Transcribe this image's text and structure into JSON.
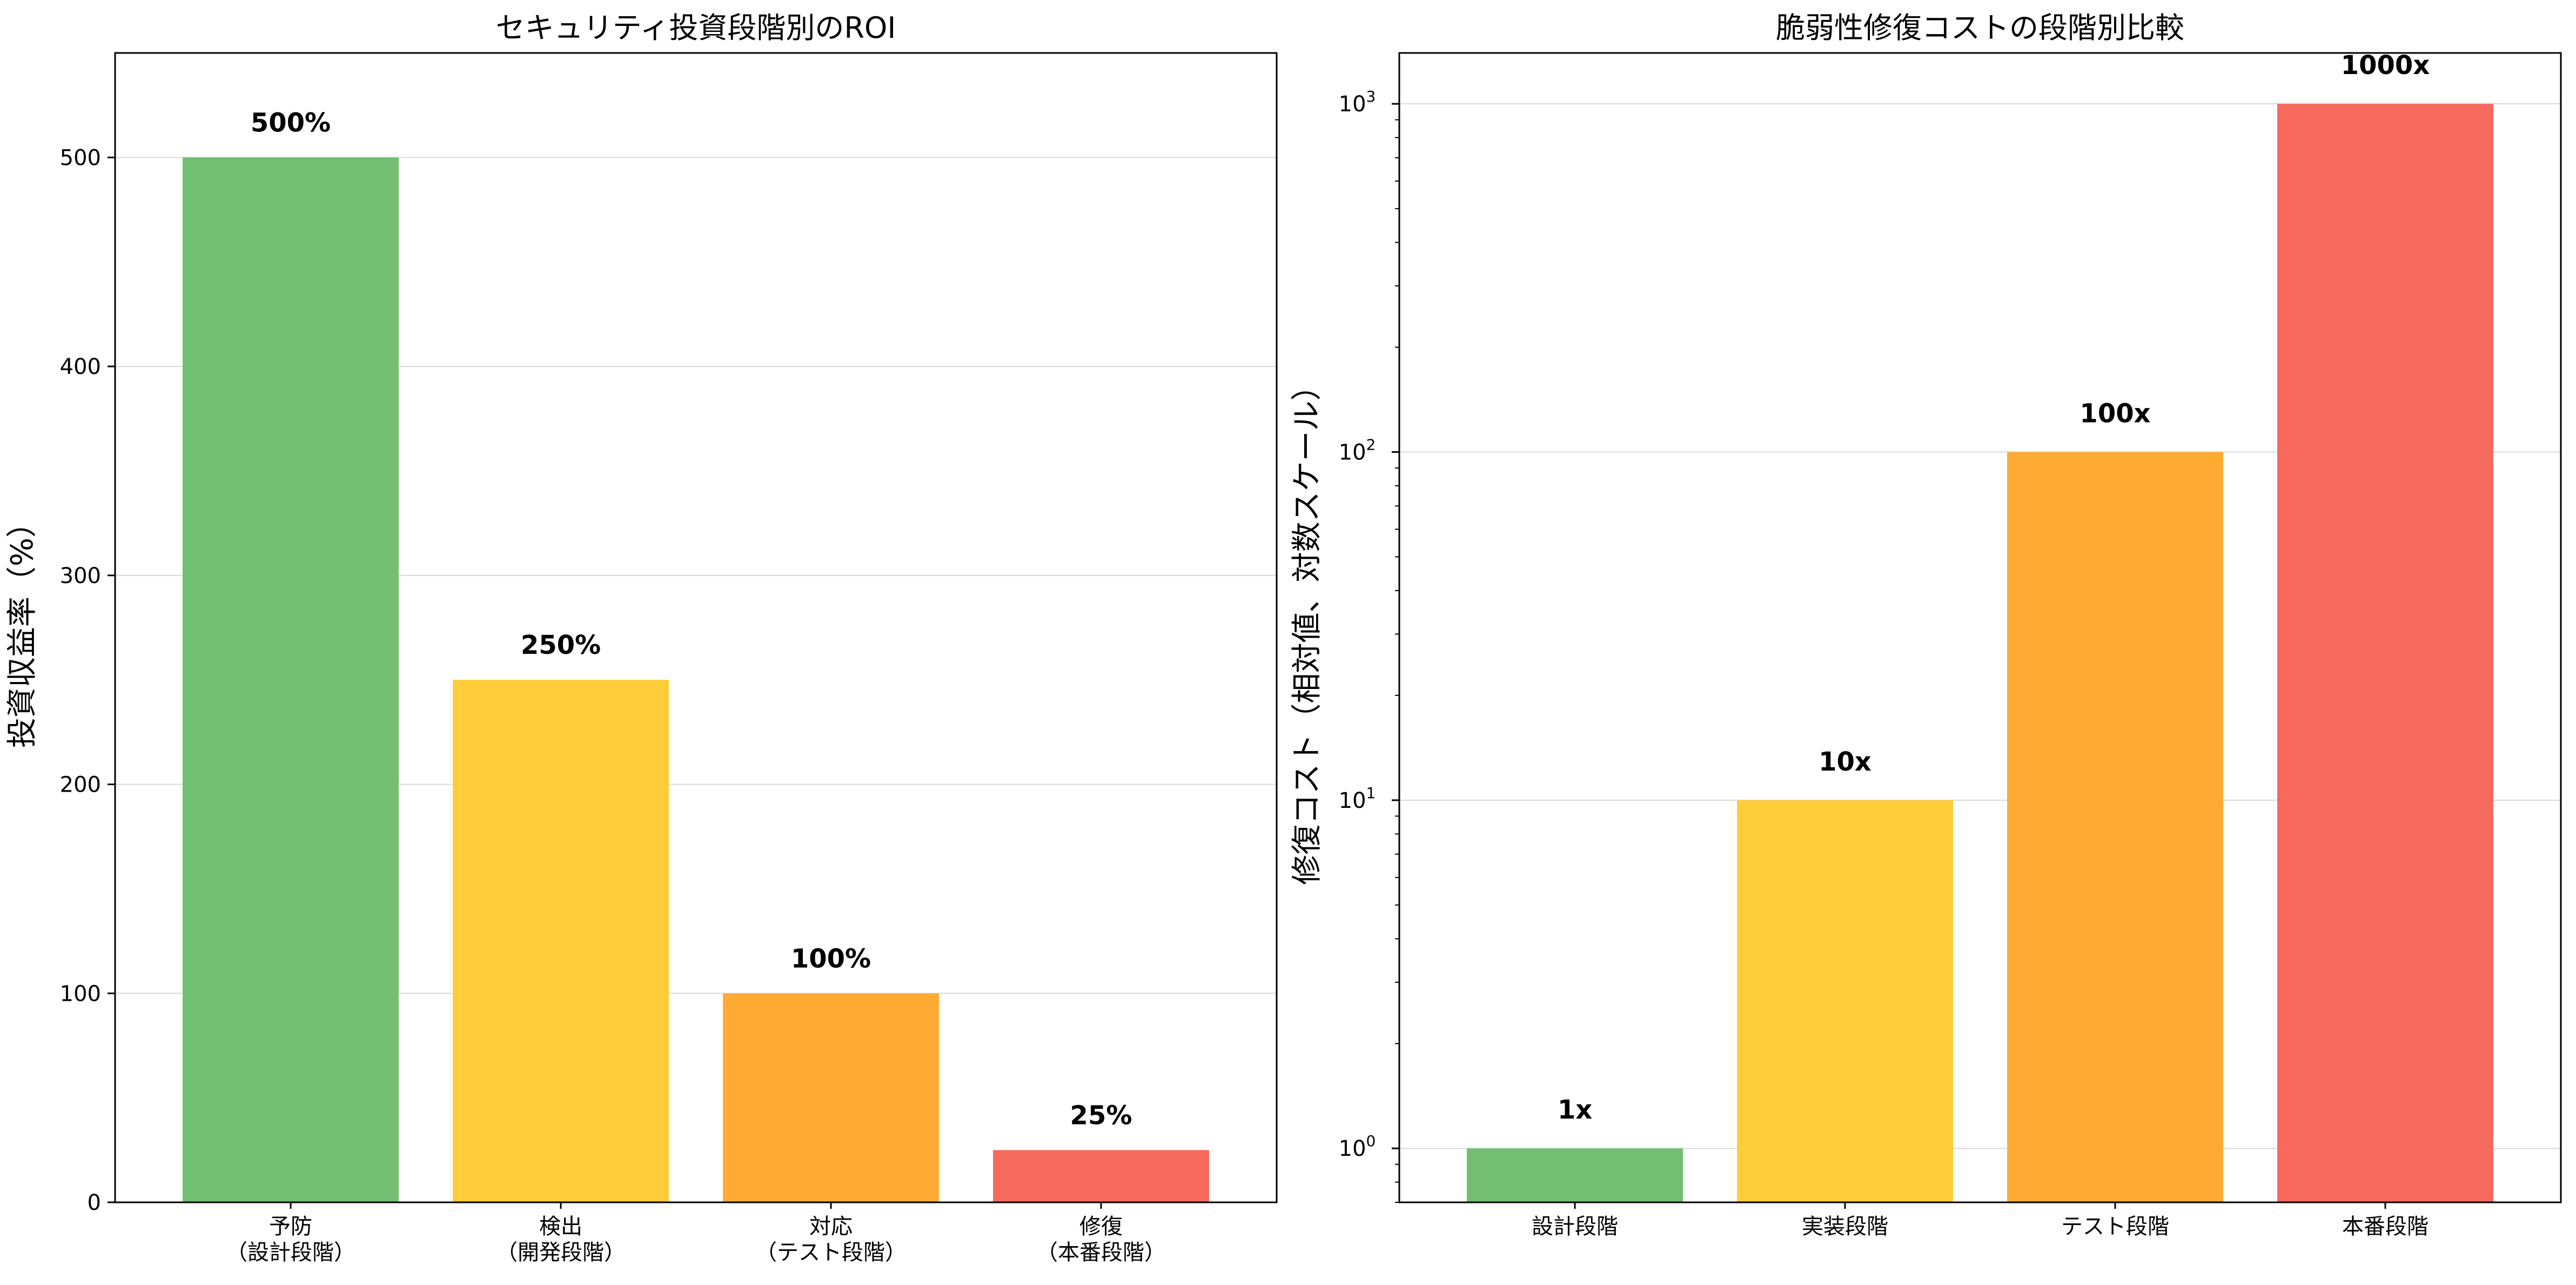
{
  "chart_data": [
    {
      "type": "bar",
      "title": "セキュリティ投資段階別のROI",
      "ylabel": "投資収益率（%）",
      "xlabel": "",
      "categories": [
        [
          "予防",
          "（設計段階）"
        ],
        [
          "検出",
          "（開発段階）"
        ],
        [
          "対応",
          "（テスト段階）"
        ],
        [
          "修復",
          "（本番段階）"
        ]
      ],
      "values": [
        500,
        250,
        100,
        25
      ],
      "data_labels": [
        "500%",
        "250%",
        "100%",
        "25%"
      ],
      "colors": [
        "#72bf72",
        "#ffcc3a",
        "#ffab33",
        "#f66a5e"
      ],
      "ylim": [
        0,
        550
      ],
      "yticks": [
        0,
        100,
        200,
        300,
        400,
        500
      ],
      "ytick_labels": [
        "0",
        "100",
        "200",
        "300",
        "400",
        "500"
      ],
      "yscale": "linear",
      "grid": "y"
    },
    {
      "type": "bar",
      "title": "脆弱性修復コストの段階別比較",
      "ylabel": "修復コスト（相対値、対数スケール）",
      "xlabel": "",
      "categories": [
        [
          "設計段階"
        ],
        [
          "実装段階"
        ],
        [
          "テスト段階"
        ],
        [
          "本番段階"
        ]
      ],
      "values": [
        1,
        10,
        100,
        1000
      ],
      "data_labels": [
        "1x",
        "10x",
        "100x",
        "1000x"
      ],
      "colors": [
        "#72bf72",
        "#ffcc3a",
        "#ffab33",
        "#f66a5e"
      ],
      "ylim": [
        0.7,
        1400
      ],
      "yticks": [
        1,
        10,
        100,
        1000
      ],
      "ytick_labels": [
        "10^0",
        "10^1",
        "10^2",
        "10^3"
      ],
      "yscale": "log",
      "grid": "y"
    }
  ]
}
